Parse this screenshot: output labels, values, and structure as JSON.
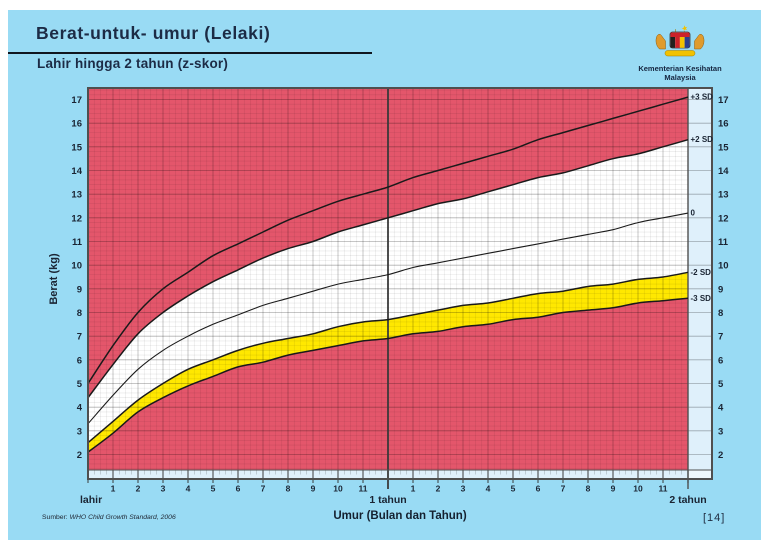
{
  "colors": {
    "panel_bg": "#99dbf4",
    "danger_zone_red": "#e4566b",
    "warning_band_yellow": "#ffe800",
    "normal_band_white": "#ffffff",
    "tick_strip_bg": "#dff0fb",
    "title_text": "#1c2b45",
    "curve_black": "#1a1a1a"
  },
  "icons": {
    "logo": "malaysia-coat-of-arms"
  },
  "header": {
    "title": "Berat-untuk- umur (Lelaki)",
    "subtitle": "Lahir hingga 2 tahun (z-skor)",
    "ministry_line1": "Kementerian Kesihatan",
    "ministry_line2": "Malaysia"
  },
  "footer": {
    "source_prefix": "Sumber:",
    "source_text": "WHO Child Growth Standard, 2006",
    "xaxis_title": "Umur (Bulan dan Tahun)",
    "page_number": "[14]"
  },
  "chart_data": {
    "type": "line",
    "title": "Berat-untuk-umur (Lelaki) — Lahir hingga 2 tahun (z-skor)",
    "xlabel": "Umur (Bulan dan Tahun)",
    "ylabel": "Berat (kg)",
    "ylim": [
      2,
      17
    ],
    "grid": true,
    "legend_position": "right-edge-labels",
    "x_months": [
      0,
      1,
      2,
      3,
      4,
      5,
      6,
      7,
      8,
      9,
      10,
      11,
      12,
      13,
      14,
      15,
      16,
      17,
      18,
      19,
      20,
      21,
      22,
      23,
      24
    ],
    "series": [
      {
        "name": "+3 SD",
        "values": [
          5.0,
          6.6,
          8.0,
          9.0,
          9.7,
          10.4,
          10.9,
          11.4,
          11.9,
          12.3,
          12.7,
          13.0,
          13.3,
          13.7,
          14.0,
          14.3,
          14.6,
          14.9,
          15.3,
          15.6,
          15.9,
          16.2,
          16.5,
          16.8,
          17.1
        ]
      },
      {
        "name": "+2 SD",
        "values": [
          4.4,
          5.8,
          7.1,
          8.0,
          8.7,
          9.3,
          9.8,
          10.3,
          10.7,
          11.0,
          11.4,
          11.7,
          12.0,
          12.3,
          12.6,
          12.8,
          13.1,
          13.4,
          13.7,
          13.9,
          14.2,
          14.5,
          14.7,
          15.0,
          15.3
        ]
      },
      {
        "name": "0",
        "values": [
          3.3,
          4.5,
          5.6,
          6.4,
          7.0,
          7.5,
          7.9,
          8.3,
          8.6,
          8.9,
          9.2,
          9.4,
          9.6,
          9.9,
          10.1,
          10.3,
          10.5,
          10.7,
          10.9,
          11.1,
          11.3,
          11.5,
          11.8,
          12.0,
          12.2
        ]
      },
      {
        "name": "-2 SD",
        "values": [
          2.5,
          3.4,
          4.3,
          5.0,
          5.6,
          6.0,
          6.4,
          6.7,
          6.9,
          7.1,
          7.4,
          7.6,
          7.7,
          7.9,
          8.1,
          8.3,
          8.4,
          8.6,
          8.8,
          8.9,
          9.1,
          9.2,
          9.4,
          9.5,
          9.7
        ]
      },
      {
        "name": "-3 SD",
        "values": [
          2.1,
          2.9,
          3.8,
          4.4,
          4.9,
          5.3,
          5.7,
          5.9,
          6.2,
          6.4,
          6.6,
          6.8,
          6.9,
          7.1,
          7.2,
          7.4,
          7.5,
          7.7,
          7.8,
          8.0,
          8.1,
          8.2,
          8.4,
          8.5,
          8.6
        ]
      }
    ],
    "yticks": [
      2,
      3,
      4,
      5,
      6,
      7,
      8,
      9,
      10,
      11,
      12,
      13,
      14,
      15,
      16,
      17
    ],
    "xtick_labels_year1": [
      "1",
      "2",
      "3",
      "4",
      "5",
      "6",
      "7",
      "8",
      "9",
      "10",
      "11"
    ],
    "xtick_labels_year2": [
      "1",
      "2",
      "3",
      "4",
      "5",
      "6",
      "7",
      "8",
      "9",
      "10",
      "11"
    ],
    "x_edge_labels": [
      "lahir",
      "1 tahun",
      "2 tahun"
    ]
  }
}
